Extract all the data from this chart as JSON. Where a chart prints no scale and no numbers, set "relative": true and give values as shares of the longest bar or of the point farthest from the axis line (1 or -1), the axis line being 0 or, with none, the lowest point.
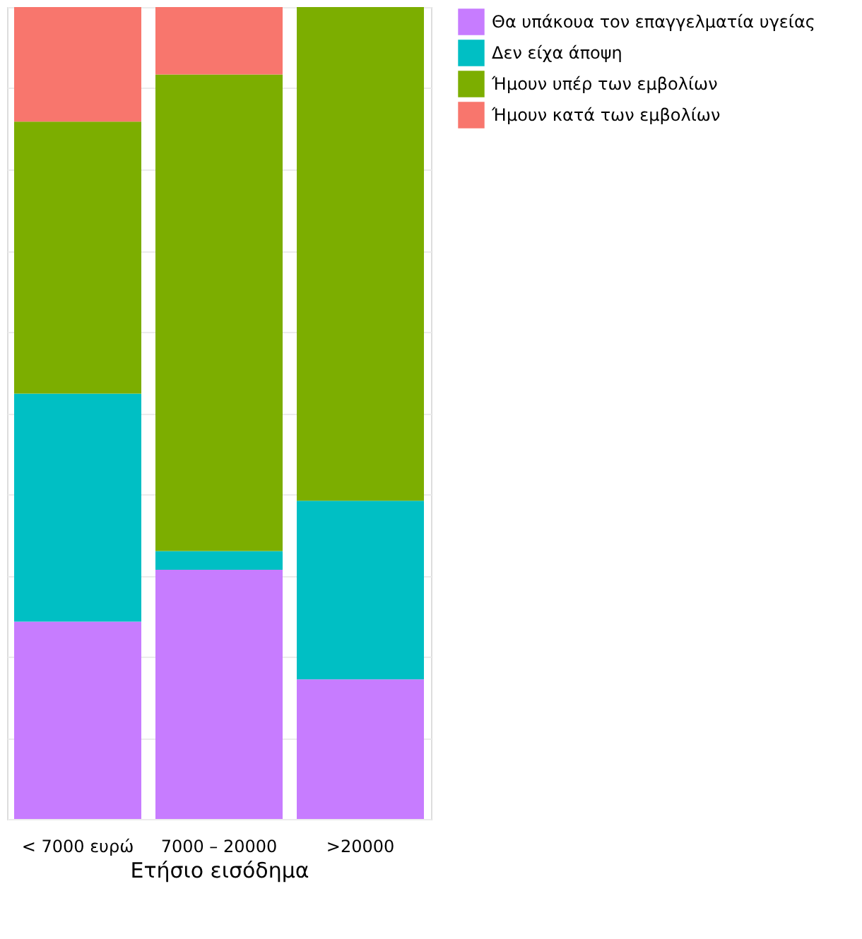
{
  "chart_data": {
    "type": "bar",
    "stacked": true,
    "relative": true,
    "xlabel": "Ετήσιο εισόδημα",
    "categories": [
      "< 7000 ευρώ",
      "7000 – 20000",
      ">20000"
    ],
    "series": [
      {
        "name": "Θα υπάκουα τον επαγγελματία υγείας",
        "color": "#c77cff",
        "values": [
          0.243,
          0.307,
          0.172
        ]
      },
      {
        "name": "Δεν είχα άποψη",
        "color": "#00bfc4",
        "values": [
          0.281,
          0.023,
          0.22
        ]
      },
      {
        "name": "Ήμουν υπέρ των εμβολίων",
        "color": "#7cae00",
        "values": [
          0.335,
          0.587,
          0.608
        ]
      },
      {
        "name": "Ήμουν κατά των εμβολίων",
        "color": "#f8766d",
        "values": [
          0.141,
          0.083,
          0
        ]
      }
    ],
    "grid": "y",
    "legend": "right"
  }
}
